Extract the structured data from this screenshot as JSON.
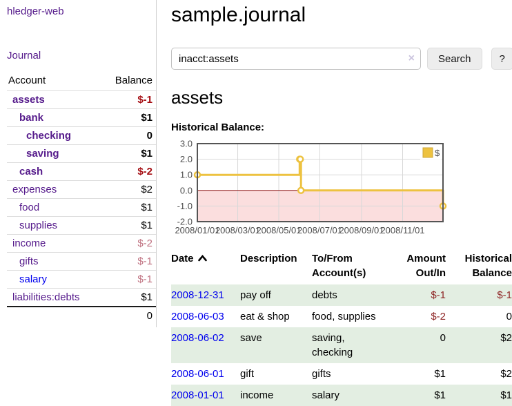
{
  "app": {
    "title": "hledger-web"
  },
  "sidebar": {
    "journal_link": "Journal",
    "headers": {
      "account": "Account",
      "balance": "Balance"
    },
    "accounts": [
      {
        "name": "assets",
        "depth": 1,
        "bold": true,
        "link_color": "purple",
        "balance": "$-1",
        "balance_class": "neg-strong"
      },
      {
        "name": "bank",
        "depth": 2,
        "bold": true,
        "link_color": "purple",
        "balance": "$1",
        "balance_class": "pos"
      },
      {
        "name": "checking",
        "depth": 3,
        "bold": true,
        "link_color": "purple",
        "balance": "0",
        "balance_class": "pos"
      },
      {
        "name": "saving",
        "depth": 3,
        "bold": true,
        "link_color": "purple",
        "balance": "$1",
        "balance_class": "pos"
      },
      {
        "name": "cash",
        "depth": 2,
        "bold": true,
        "link_color": "purple",
        "balance": "$-2",
        "balance_class": "neg-strong"
      },
      {
        "name": "expenses",
        "depth": 1,
        "bold": false,
        "link_color": "purple",
        "balance": "$2",
        "balance_class": "pos"
      },
      {
        "name": "food",
        "depth": 2,
        "bold": false,
        "link_color": "purple",
        "balance": "$1",
        "balance_class": "pos"
      },
      {
        "name": "supplies",
        "depth": 2,
        "bold": false,
        "link_color": "purple",
        "balance": "$1",
        "balance_class": "pos"
      },
      {
        "name": "income",
        "depth": 1,
        "bold": false,
        "link_color": "purple",
        "balance": "$-2",
        "balance_class": "neg-soft"
      },
      {
        "name": "gifts",
        "depth": 2,
        "bold": false,
        "link_color": "purple",
        "balance": "$-1",
        "balance_class": "neg-soft"
      },
      {
        "name": "salary",
        "depth": 2,
        "bold": false,
        "link_color": "blue",
        "balance": "$-1",
        "balance_class": "neg-soft"
      },
      {
        "name": "liabilities:debts",
        "depth": 1,
        "bold": false,
        "link_color": "purple",
        "balance": "$1",
        "balance_class": "pos"
      }
    ],
    "total": "0"
  },
  "header": {
    "title": "sample.journal"
  },
  "search": {
    "value": "inacct:assets",
    "clear_icon": "×",
    "button_label": "Search",
    "help_label": "?"
  },
  "account_page": {
    "title": "assets",
    "chart_label": "Historical Balance:"
  },
  "chart_data": {
    "type": "line",
    "step": true,
    "title": "Historical Balance:",
    "series": [
      {
        "name": "$",
        "color": "#edc240",
        "marker_border": "#edc240",
        "points": [
          [
            "2008-01-01",
            1
          ],
          [
            "2008-06-01",
            2
          ],
          [
            "2008-06-02",
            2
          ],
          [
            "2008-06-03",
            0
          ],
          [
            "2008-12-31",
            -1
          ]
        ]
      }
    ],
    "xlim": [
      "2008-01-01",
      "2008-12-31"
    ],
    "ylim": [
      -2,
      3
    ],
    "x_ticks": [
      {
        "date": "2008-01-01",
        "label": "2008/01/01"
      },
      {
        "date": "2008-03-01",
        "label": "2008/03/01"
      },
      {
        "date": "2008-05-01",
        "label": "2008/05/01"
      },
      {
        "date": "2008-07-01",
        "label": "2008/07/01"
      },
      {
        "date": "2008-09-01",
        "label": "2008/09/01"
      },
      {
        "date": "2008-11-01",
        "label": "2008/11/01"
      }
    ],
    "y_ticks": [
      "3.0",
      "2.0",
      "1.0",
      "0.0",
      "-1.0",
      "-2.0"
    ],
    "legend_position": "top-right",
    "grid": true,
    "grid_color": "#d8d8d8",
    "border_color": "#545454",
    "axis_text_color": "#4d4d4d",
    "negative_region_color": "#fbdede",
    "zero_line_color": "#8c1717"
  },
  "transactions": {
    "headers": {
      "date": "Date",
      "description": "Description",
      "accounts": "To/From Account(s)",
      "amount": "Amount Out/In",
      "balance": "Historical Balance"
    },
    "sort": {
      "column": "date",
      "direction": "ascending"
    },
    "rows": [
      {
        "date": "2008-12-31",
        "description": "pay off",
        "accounts": "debts",
        "amount": "$-1",
        "amount_negative": true,
        "balance": "$-1",
        "balance_negative": true
      },
      {
        "date": "2008-06-03",
        "description": "eat & shop",
        "accounts": "food, supplies",
        "amount": "$-2",
        "amount_negative": true,
        "balance": "0",
        "balance_negative": false
      },
      {
        "date": "2008-06-02",
        "description": "save",
        "accounts": "saving, checking",
        "amount": "0",
        "amount_negative": false,
        "balance": "$2",
        "balance_negative": false
      },
      {
        "date": "2008-06-01",
        "description": "gift",
        "accounts": "gifts",
        "amount": "$1",
        "amount_negative": false,
        "balance": "$2",
        "balance_negative": false
      },
      {
        "date": "2008-01-01",
        "description": "income",
        "accounts": "salary",
        "amount": "$1",
        "amount_negative": false,
        "balance": "$1",
        "balance_negative": false
      }
    ]
  },
  "colors": {
    "link_purple": "#551a8b",
    "link_blue": "#0000ee",
    "negative_strong": "#a50d12",
    "negative_soft": "#bf7180",
    "table_negative": "#8e2525",
    "row_stripe_green": "#e3eee2",
    "series_yellow": "#edc240"
  }
}
